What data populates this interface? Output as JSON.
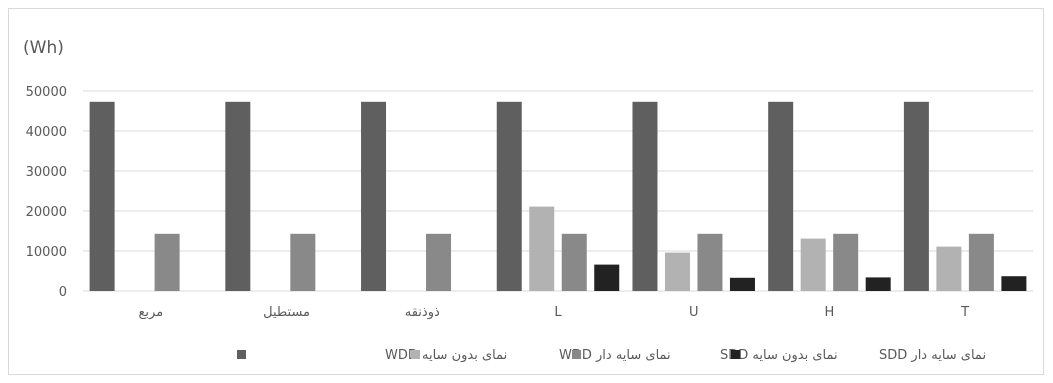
{
  "chart_data": {
    "type": "bar",
    "ylabel": "(Wh)",
    "ylim": [
      0,
      50000
    ],
    "yticks": [
      0,
      10000,
      20000,
      30000,
      40000,
      50000
    ],
    "grid": true,
    "legend_position": "bottom",
    "categories": [
      "مربع",
      "مستطیل",
      "ذوذنقه",
      "L",
      "U",
      "H",
      "T"
    ],
    "series": [
      {
        "name": "نمای بدون سایه WDD",
        "color": "#5f5f5f",
        "values": [
          47300,
          47300,
          47300,
          47300,
          47300,
          47300,
          47300
        ]
      },
      {
        "name": "نمای سایه دار WDD",
        "color": "#b2b2b2",
        "values": [
          0,
          0,
          0,
          21100,
          9600,
          13100,
          11100
        ]
      },
      {
        "name": "نمای بدون سایه SDD",
        "color": "#898989",
        "values": [
          14300,
          14300,
          14300,
          14300,
          14300,
          14300,
          14300
        ]
      },
      {
        "name": "نمای سایه دار SDD",
        "color": "#222222",
        "values": [
          0,
          0,
          0,
          6600,
          3300,
          3400,
          3700
        ]
      }
    ]
  }
}
